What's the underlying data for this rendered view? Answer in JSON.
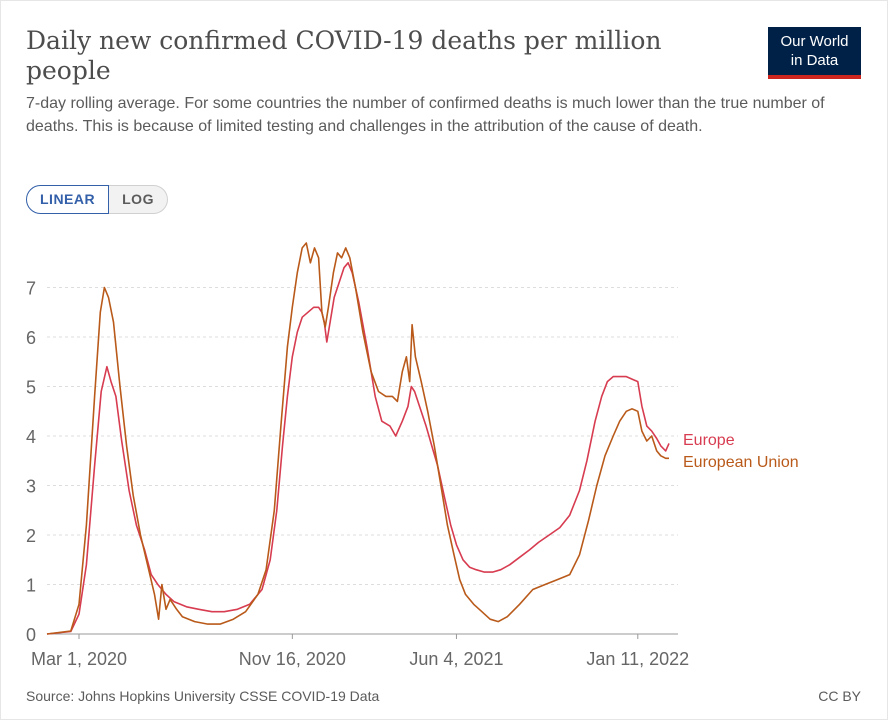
{
  "header": {
    "title": "Daily new confirmed COVID-19 deaths per million people",
    "subtitle": "7-day rolling average. For some countries the number of confirmed deaths is much lower than the true number of deaths. This is because of limited testing and challenges in the attribution of the cause of death.",
    "logo_line1": "Our World",
    "logo_line2": "in Data"
  },
  "controls": {
    "linear_label": "LINEAR",
    "log_label": "LOG"
  },
  "footer": {
    "source": "Source: Johns Hopkins University CSSE COVID-19 Data",
    "license": "CC BY"
  },
  "colors": {
    "europe": "#d73c50",
    "eu": "#b95a1a",
    "grid": "#dddddd",
    "axis_text": "#666666"
  },
  "chart_data": {
    "type": "line",
    "x_type": "date",
    "xlim": [
      "2020-01-22",
      "2022-03-01"
    ],
    "ylim": [
      0,
      7.9
    ],
    "y_ticks": [
      0,
      1,
      2,
      3,
      4,
      5,
      6,
      7
    ],
    "x_tick_labels": [
      {
        "date": "2020-03-01",
        "label": "Mar 1, 2020"
      },
      {
        "date": "2020-11-16",
        "label": "Nov 16, 2020"
      },
      {
        "date": "2021-06-04",
        "label": "Jun 4, 2021"
      },
      {
        "date": "2022-01-11",
        "label": "Jan 11, 2022"
      }
    ],
    "grid": "horizontal-dashed",
    "legend": "inline-right",
    "series": [
      {
        "name": "Europe",
        "color": "#d73c50",
        "points": [
          [
            "2020-01-22",
            0
          ],
          [
            "2020-02-20",
            0.05
          ],
          [
            "2020-03-01",
            0.4
          ],
          [
            "2020-03-10",
            1.4
          ],
          [
            "2020-03-20",
            3.4
          ],
          [
            "2020-03-28",
            4.9
          ],
          [
            "2020-04-04",
            5.4
          ],
          [
            "2020-04-09",
            5.1
          ],
          [
            "2020-04-15",
            4.8
          ],
          [
            "2020-04-22",
            3.9
          ],
          [
            "2020-05-01",
            2.9
          ],
          [
            "2020-05-10",
            2.2
          ],
          [
            "2020-05-20",
            1.7
          ],
          [
            "2020-05-28",
            1.2
          ],
          [
            "2020-06-05",
            1.0
          ],
          [
            "2020-06-15",
            0.8
          ],
          [
            "2020-06-25",
            0.65
          ],
          [
            "2020-07-10",
            0.55
          ],
          [
            "2020-07-25",
            0.5
          ],
          [
            "2020-08-10",
            0.45
          ],
          [
            "2020-08-25",
            0.45
          ],
          [
            "2020-09-10",
            0.5
          ],
          [
            "2020-09-25",
            0.6
          ],
          [
            "2020-10-10",
            0.9
          ],
          [
            "2020-10-20",
            1.5
          ],
          [
            "2020-10-28",
            2.5
          ],
          [
            "2020-11-04",
            3.8
          ],
          [
            "2020-11-10",
            4.8
          ],
          [
            "2020-11-16",
            5.6
          ],
          [
            "2020-11-22",
            6.1
          ],
          [
            "2020-11-28",
            6.4
          ],
          [
            "2020-12-05",
            6.5
          ],
          [
            "2020-12-12",
            6.6
          ],
          [
            "2020-12-18",
            6.6
          ],
          [
            "2020-12-22",
            6.5
          ],
          [
            "2020-12-25",
            6.3
          ],
          [
            "2020-12-28",
            5.9
          ],
          [
            "2021-01-01",
            6.3
          ],
          [
            "2021-01-06",
            6.8
          ],
          [
            "2021-01-12",
            7.1
          ],
          [
            "2021-01-18",
            7.4
          ],
          [
            "2021-01-23",
            7.5
          ],
          [
            "2021-01-28",
            7.3
          ],
          [
            "2021-02-05",
            6.7
          ],
          [
            "2021-02-15",
            5.8
          ],
          [
            "2021-02-25",
            4.8
          ],
          [
            "2021-03-05",
            4.3
          ],
          [
            "2021-03-15",
            4.2
          ],
          [
            "2021-03-22",
            4.0
          ],
          [
            "2021-03-30",
            4.3
          ],
          [
            "2021-04-06",
            4.6
          ],
          [
            "2021-04-10",
            5.0
          ],
          [
            "2021-04-14",
            4.9
          ],
          [
            "2021-04-20",
            4.6
          ],
          [
            "2021-04-28",
            4.2
          ],
          [
            "2021-05-05",
            3.8
          ],
          [
            "2021-05-12",
            3.4
          ],
          [
            "2021-05-20",
            2.8
          ],
          [
            "2021-05-28",
            2.2
          ],
          [
            "2021-06-04",
            1.8
          ],
          [
            "2021-06-12",
            1.5
          ],
          [
            "2021-06-20",
            1.35
          ],
          [
            "2021-06-28",
            1.3
          ],
          [
            "2021-07-08",
            1.25
          ],
          [
            "2021-07-18",
            1.25
          ],
          [
            "2021-07-28",
            1.3
          ],
          [
            "2021-08-08",
            1.4
          ],
          [
            "2021-08-20",
            1.55
          ],
          [
            "2021-09-01",
            1.7
          ],
          [
            "2021-09-12",
            1.85
          ],
          [
            "2021-09-25",
            2.0
          ],
          [
            "2021-10-08",
            2.15
          ],
          [
            "2021-10-20",
            2.4
          ],
          [
            "2021-11-01",
            2.9
          ],
          [
            "2021-11-10",
            3.5
          ],
          [
            "2021-11-20",
            4.3
          ],
          [
            "2021-11-28",
            4.8
          ],
          [
            "2021-12-05",
            5.1
          ],
          [
            "2021-12-12",
            5.2
          ],
          [
            "2021-12-20",
            5.2
          ],
          [
            "2021-12-28",
            5.2
          ],
          [
            "2022-01-04",
            5.15
          ],
          [
            "2022-01-11",
            5.1
          ],
          [
            "2022-01-16",
            4.6
          ],
          [
            "2022-01-22",
            4.2
          ],
          [
            "2022-01-28",
            4.1
          ],
          [
            "2022-02-03",
            3.95
          ],
          [
            "2022-02-08",
            3.8
          ],
          [
            "2022-02-14",
            3.7
          ],
          [
            "2022-02-18",
            3.85
          ]
        ]
      },
      {
        "name": "European Union",
        "color": "#b95a1a",
        "points": [
          [
            "2020-01-22",
            0
          ],
          [
            "2020-02-20",
            0.06
          ],
          [
            "2020-03-01",
            0.6
          ],
          [
            "2020-03-10",
            2.2
          ],
          [
            "2020-03-20",
            4.8
          ],
          [
            "2020-03-27",
            6.5
          ],
          [
            "2020-04-01",
            7.0
          ],
          [
            "2020-04-06",
            6.8
          ],
          [
            "2020-04-12",
            6.3
          ],
          [
            "2020-04-20",
            5.0
          ],
          [
            "2020-04-28",
            3.8
          ],
          [
            "2020-05-06",
            2.8
          ],
          [
            "2020-05-15",
            2.0
          ],
          [
            "2020-05-25",
            1.3
          ],
          [
            "2020-06-01",
            0.8
          ],
          [
            "2020-06-06",
            0.3
          ],
          [
            "2020-06-10",
            1.0
          ],
          [
            "2020-06-15",
            0.5
          ],
          [
            "2020-06-20",
            0.7
          ],
          [
            "2020-06-28",
            0.5
          ],
          [
            "2020-07-05",
            0.35
          ],
          [
            "2020-07-20",
            0.25
          ],
          [
            "2020-08-05",
            0.2
          ],
          [
            "2020-08-20",
            0.2
          ],
          [
            "2020-09-05",
            0.3
          ],
          [
            "2020-09-20",
            0.45
          ],
          [
            "2020-10-05",
            0.8
          ],
          [
            "2020-10-15",
            1.3
          ],
          [
            "2020-10-25",
            2.5
          ],
          [
            "2020-11-02",
            4.2
          ],
          [
            "2020-11-10",
            5.8
          ],
          [
            "2020-11-16",
            6.6
          ],
          [
            "2020-11-22",
            7.3
          ],
          [
            "2020-11-28",
            7.8
          ],
          [
            "2020-12-03",
            7.9
          ],
          [
            "2020-12-08",
            7.5
          ],
          [
            "2020-12-13",
            7.8
          ],
          [
            "2020-12-18",
            7.6
          ],
          [
            "2020-12-22",
            6.5
          ],
          [
            "2020-12-26",
            6.2
          ],
          [
            "2020-12-30",
            6.6
          ],
          [
            "2021-01-05",
            7.3
          ],
          [
            "2021-01-10",
            7.7
          ],
          [
            "2021-01-15",
            7.6
          ],
          [
            "2021-01-20",
            7.8
          ],
          [
            "2021-01-25",
            7.6
          ],
          [
            "2021-02-01",
            7.0
          ],
          [
            "2021-02-10",
            6.1
          ],
          [
            "2021-02-20",
            5.3
          ],
          [
            "2021-03-01",
            4.9
          ],
          [
            "2021-03-10",
            4.8
          ],
          [
            "2021-03-18",
            4.8
          ],
          [
            "2021-03-24",
            4.7
          ],
          [
            "2021-03-30",
            5.3
          ],
          [
            "2021-04-04",
            5.6
          ],
          [
            "2021-04-08",
            5.1
          ],
          [
            "2021-04-11",
            6.25
          ],
          [
            "2021-04-15",
            5.6
          ],
          [
            "2021-04-22",
            5.1
          ],
          [
            "2021-04-30",
            4.5
          ],
          [
            "2021-05-08",
            3.8
          ],
          [
            "2021-05-16",
            3.0
          ],
          [
            "2021-05-24",
            2.2
          ],
          [
            "2021-06-01",
            1.6
          ],
          [
            "2021-06-08",
            1.1
          ],
          [
            "2021-06-15",
            0.8
          ],
          [
            "2021-06-25",
            0.6
          ],
          [
            "2021-07-05",
            0.45
          ],
          [
            "2021-07-15",
            0.3
          ],
          [
            "2021-07-25",
            0.25
          ],
          [
            "2021-08-05",
            0.35
          ],
          [
            "2021-08-20",
            0.6
          ],
          [
            "2021-09-05",
            0.9
          ],
          [
            "2021-09-20",
            1.0
          ],
          [
            "2021-10-05",
            1.1
          ],
          [
            "2021-10-20",
            1.2
          ],
          [
            "2021-11-01",
            1.6
          ],
          [
            "2021-11-12",
            2.3
          ],
          [
            "2021-11-22",
            3.0
          ],
          [
            "2021-12-02",
            3.6
          ],
          [
            "2021-12-12",
            4.0
          ],
          [
            "2021-12-20",
            4.3
          ],
          [
            "2021-12-28",
            4.5
          ],
          [
            "2022-01-04",
            4.55
          ],
          [
            "2022-01-11",
            4.5
          ],
          [
            "2022-01-16",
            4.1
          ],
          [
            "2022-01-22",
            3.9
          ],
          [
            "2022-01-28",
            4.0
          ],
          [
            "2022-02-03",
            3.7
          ],
          [
            "2022-02-08",
            3.6
          ],
          [
            "2022-02-14",
            3.55
          ],
          [
            "2022-02-18",
            3.55
          ]
        ]
      }
    ]
  }
}
